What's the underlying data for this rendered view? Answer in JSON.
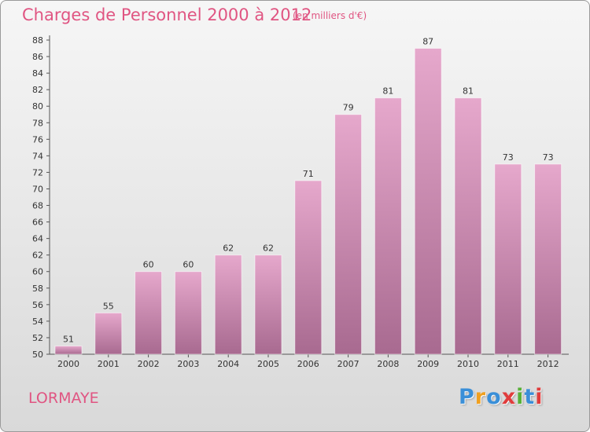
{
  "header": {
    "title": "Charges de Personnel 2000 à 2012",
    "subtitle": "(en milliers d'€)"
  },
  "footer": {
    "town": "LORMAYE",
    "brand": "Proxiti",
    "brand_letters": [
      "P",
      "r",
      "o",
      "x",
      "i",
      "t",
      "i"
    ],
    "brand_colors": [
      "#3a8fd8",
      "#f0a020",
      "#3a8fd8",
      "#e03c3c",
      "#58b038",
      "#3a8fd8",
      "#e03c3c"
    ]
  },
  "colors": {
    "bar_top": "#e6a8cc",
    "bar_bottom": "#a86a90",
    "accent": "#e05582"
  },
  "chart_data": {
    "type": "bar",
    "categories": [
      "2000",
      "2001",
      "2002",
      "2003",
      "2004",
      "2005",
      "2006",
      "2007",
      "2008",
      "2009",
      "2010",
      "2011",
      "2012"
    ],
    "values": [
      51,
      55,
      60,
      60,
      62,
      62,
      71,
      79,
      81,
      87,
      81,
      73,
      73
    ],
    "data_labels": [
      "51",
      "55",
      "60",
      "60",
      "62",
      "62",
      "71",
      "79",
      "81",
      "87",
      "81",
      "73",
      "73"
    ],
    "title": "Charges de Personnel 2000 à 2012",
    "xlabel": "",
    "ylabel": "",
    "ylim": [
      50,
      88
    ],
    "ytick_step": 2,
    "grid": false,
    "legend": "none"
  }
}
